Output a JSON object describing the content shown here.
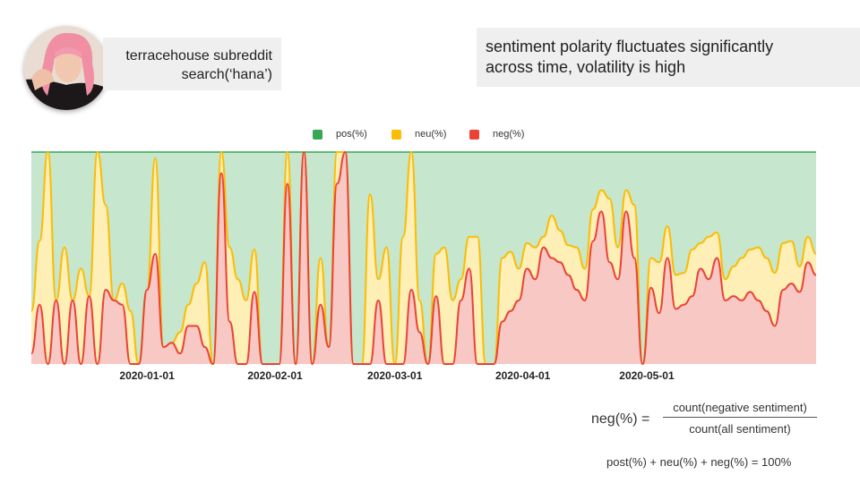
{
  "caption": {
    "line1": "terracehouse subreddit",
    "line2": "search(‘hana’)"
  },
  "note": {
    "line1": "sentiment polarity fluctuates significantly",
    "line2": "across time, volatility is high"
  },
  "formula": {
    "lhs": "neg(%) =",
    "numerator": "count(negative sentiment)",
    "denominator": "count(all sentiment)"
  },
  "sum_equation": "post(%) + neu(%) + neg(%) = 100%",
  "colors": {
    "pos": "#34a853",
    "neu": "#fbbc04",
    "neg": "#ea4335",
    "pos_fill": "#c6e6cd",
    "neu_fill": "#fdefb6",
    "neg_fill": "#f8c8c5"
  },
  "chart_data": {
    "type": "area",
    "stacked": true,
    "title": "",
    "xlabel": "",
    "ylabel": "",
    "ylim": [
      0,
      1
    ],
    "x_ticks": [
      "2020-01-01",
      "2020-02-01",
      "2020-03-01",
      "2020-04-01",
      "2020-05-01"
    ],
    "grid": false,
    "legend": "top-center",
    "x": [
      "2019-12-04",
      "2019-12-06",
      "2019-12-08",
      "2019-12-10",
      "2019-12-12",
      "2019-12-14",
      "2019-12-16",
      "2019-12-18",
      "2019-12-20",
      "2019-12-22",
      "2019-12-24",
      "2019-12-26",
      "2019-12-28",
      "2019-12-30",
      "2020-01-01",
      "2020-01-03",
      "2020-01-05",
      "2020-01-07",
      "2020-01-09",
      "2020-01-11",
      "2020-01-13",
      "2020-01-15",
      "2020-01-17",
      "2020-01-19",
      "2020-01-21",
      "2020-01-23",
      "2020-01-25",
      "2020-01-27",
      "2020-01-29",
      "2020-01-31",
      "2020-02-02",
      "2020-02-04",
      "2020-02-06",
      "2020-02-08",
      "2020-02-10",
      "2020-02-12",
      "2020-02-14",
      "2020-02-16",
      "2020-02-18",
      "2020-02-20",
      "2020-02-22",
      "2020-02-24",
      "2020-02-26",
      "2020-02-28",
      "2020-03-01",
      "2020-03-03",
      "2020-03-05",
      "2020-03-07",
      "2020-03-09",
      "2020-03-11",
      "2020-03-13",
      "2020-03-15",
      "2020-03-17",
      "2020-03-19",
      "2020-03-21",
      "2020-03-23",
      "2020-03-25",
      "2020-03-27",
      "2020-03-29",
      "2020-03-31",
      "2020-04-02",
      "2020-04-04",
      "2020-04-06",
      "2020-04-08",
      "2020-04-10",
      "2020-04-12",
      "2020-04-14",
      "2020-04-16",
      "2020-04-18",
      "2020-04-20",
      "2020-04-22",
      "2020-04-24",
      "2020-04-26",
      "2020-04-28",
      "2020-04-30",
      "2020-05-02",
      "2020-05-04",
      "2020-05-06",
      "2020-05-08",
      "2020-05-10",
      "2020-05-12",
      "2020-05-14",
      "2020-05-16",
      "2020-05-18",
      "2020-05-20",
      "2020-05-22",
      "2020-05-24",
      "2020-05-26",
      "2020-05-28",
      "2020-05-30",
      "2020-06-01",
      "2020-06-03",
      "2020-06-05",
      "2020-06-07",
      "2020-06-09",
      "2020-06-11"
    ],
    "series": [
      {
        "name": "neg(%)",
        "values": [
          0.05,
          0.28,
          0.0,
          0.3,
          0.0,
          0.3,
          0.0,
          0.32,
          0.0,
          0.35,
          0.3,
          0.28,
          0.0,
          0.0,
          0.35,
          0.52,
          0.08,
          0.1,
          0.05,
          0.18,
          0.18,
          0.08,
          0.0,
          0.9,
          0.2,
          0.0,
          0.0,
          0.34,
          0.0,
          0.0,
          0.0,
          0.85,
          0.0,
          1.0,
          0.0,
          0.28,
          0.08,
          0.85,
          1.0,
          0.0,
          0.0,
          0.0,
          0.3,
          0.0,
          0.0,
          0.0,
          0.35,
          0.15,
          0.0,
          0.32,
          0.0,
          0.0,
          0.3,
          0.45,
          0.0,
          0.0,
          0.0,
          0.2,
          0.25,
          0.3,
          0.45,
          0.4,
          0.55,
          0.5,
          0.48,
          0.42,
          0.35,
          0.3,
          0.58,
          0.72,
          0.48,
          0.4,
          0.72,
          0.5,
          0.0,
          0.36,
          0.24,
          0.5,
          0.26,
          0.28,
          0.32,
          0.45,
          0.4,
          0.5,
          0.3,
          0.32,
          0.3,
          0.34,
          0.3,
          0.25,
          0.18,
          0.35,
          0.38,
          0.34,
          0.48,
          0.42
        ]
      },
      {
        "name": "neu(%)",
        "values": [
          0.2,
          0.3,
          1.0,
          0.0,
          0.55,
          0.0,
          0.45,
          0.0,
          1.0,
          0.4,
          0.0,
          0.1,
          0.25,
          0.0,
          0.0,
          0.45,
          0.0,
          0.0,
          0.1,
          0.1,
          0.2,
          0.4,
          0.0,
          0.1,
          0.35,
          0.4,
          0.3,
          0.2,
          0.0,
          0.0,
          0.0,
          0.15,
          0.0,
          0.0,
          0.0,
          0.22,
          0.0,
          0.15,
          0.0,
          0.0,
          0.0,
          0.8,
          0.1,
          0.55,
          0.0,
          0.6,
          0.65,
          0.15,
          0.0,
          0.2,
          0.55,
          0.3,
          0.1,
          0.15,
          0.6,
          0.0,
          0.0,
          0.3,
          0.28,
          0.15,
          0.12,
          0.15,
          0.05,
          0.2,
          0.15,
          0.14,
          0.2,
          0.15,
          0.15,
          0.1,
          0.3,
          0.15,
          0.1,
          0.25,
          0.0,
          0.14,
          0.24,
          0.15,
          0.16,
          0.15,
          0.22,
          0.12,
          0.2,
          0.12,
          0.1,
          0.14,
          0.2,
          0.2,
          0.25,
          0.25,
          0.25,
          0.22,
          0.2,
          0.12,
          0.12,
          0.1
        ]
      },
      {
        "name": "pos(%)",
        "values": [
          0.75,
          0.42,
          0.0,
          0.7,
          0.45,
          0.7,
          0.55,
          0.68,
          0.0,
          0.25,
          0.7,
          0.62,
          0.75,
          1.0,
          0.65,
          0.03,
          0.92,
          0.9,
          0.85,
          0.72,
          0.62,
          0.52,
          1.0,
          0.0,
          0.45,
          0.6,
          0.7,
          0.46,
          1.0,
          1.0,
          1.0,
          0.0,
          1.0,
          0.0,
          1.0,
          0.5,
          0.92,
          0.0,
          0.0,
          1.0,
          1.0,
          0.2,
          0.6,
          0.45,
          1.0,
          0.4,
          0.0,
          0.7,
          1.0,
          0.48,
          0.45,
          0.7,
          0.6,
          0.4,
          0.4,
          1.0,
          1.0,
          0.5,
          0.47,
          0.55,
          0.43,
          0.45,
          0.4,
          0.3,
          0.37,
          0.44,
          0.45,
          0.55,
          0.27,
          0.18,
          0.22,
          0.45,
          0.18,
          0.25,
          1.0,
          0.5,
          0.52,
          0.35,
          0.58,
          0.57,
          0.46,
          0.43,
          0.4,
          0.38,
          0.6,
          0.54,
          0.5,
          0.46,
          0.45,
          0.5,
          0.57,
          0.43,
          0.42,
          0.54,
          0.4,
          0.48
        ]
      }
    ]
  }
}
